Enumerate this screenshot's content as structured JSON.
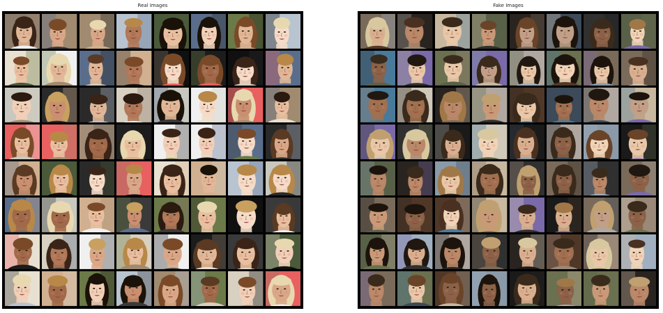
{
  "figure": {
    "real_panel": {
      "title": "Real Images",
      "rows": 8,
      "cols": 8,
      "palette": {
        "backgrounds": [
          "#6b7a48",
          "#f0f0f0",
          "#d8d0c0",
          "#3a3a3a",
          "#5a6e8c",
          "#2a2a2a",
          "#a08a70",
          "#e86060",
          "#c8c8c0",
          "#1c1c1c",
          "#b8c4d0",
          "#4a5a3a",
          "#e8e0d0",
          "#101010",
          "#8c7c6c",
          "#d0b090"
        ],
        "skins": [
          "#e8c0a0",
          "#d8a888",
          "#f0d0b8",
          "#c89070",
          "#b07858",
          "#f4dcc8",
          "#a06a4a",
          "#e0b898"
        ],
        "hairs": [
          "#3a2418",
          "#1a1208",
          "#c8a060",
          "#7a4a28",
          "#e8d8b0",
          "#5a3a22",
          "#2a1a10",
          "#b88848"
        ]
      }
    },
    "fake_panel": {
      "title": "Fake Images",
      "rows": 8,
      "cols": 8,
      "palette": {
        "backgrounds": [
          "#4a7a9a",
          "#303030",
          "#8a9aa8",
          "#c8b8a0",
          "#2a2420",
          "#6a7050",
          "#b0a8a0",
          "#1a1a1a",
          "#7a6a5a",
          "#a0b0c0",
          "#503828",
          "#d0c8b8",
          "#3c4a5a",
          "#9a8878",
          "#7a6aa8",
          "#586048"
        ],
        "skins": [
          "#d8b090",
          "#c89a78",
          "#e8c8a8",
          "#b88868",
          "#a07050",
          "#f0d4b8",
          "#c0a088",
          "#8a6248"
        ],
        "hairs": [
          "#3a2a1c",
          "#201810",
          "#c0a070",
          "#6a4428",
          "#d8c8a0",
          "#4a3020",
          "#1c140c",
          "#a07848"
        ]
      }
    }
  }
}
